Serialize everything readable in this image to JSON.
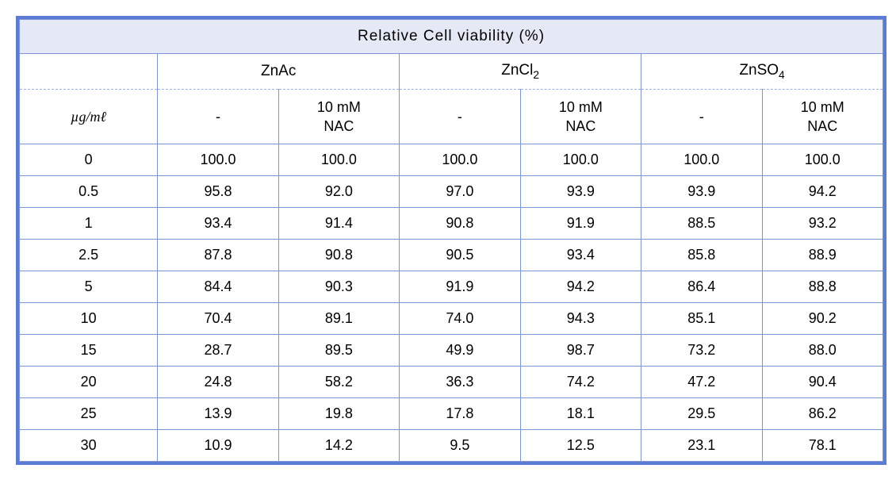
{
  "table": {
    "type": "table",
    "title": "Relative Cell viability (%)",
    "border_color": "#5b7bd5",
    "cell_border_color": "#7a95d8",
    "title_bg": "#e4e9f5",
    "row_bg": "#ffffff",
    "text_color": "#000000",
    "font_family": "Arial",
    "title_fontsize": 19,
    "header_fontsize": 19,
    "body_fontsize": 18,
    "unit_label_html": "㎍/㎖",
    "compounds": [
      {
        "name": "ZnAc",
        "name_html": "ZnAc"
      },
      {
        "name": "ZnCl2",
        "name_html": "ZnCl<sub>2</sub>"
      },
      {
        "name": "ZnSO4",
        "name_html": "ZnSO<sub>4</sub>"
      }
    ],
    "subcolumns": [
      {
        "label": "-"
      },
      {
        "label": "10 mM\nNAC"
      }
    ],
    "concentrations": [
      "0",
      "0.5",
      "1",
      "2.5",
      "5",
      "10",
      "15",
      "20",
      "25",
      "30"
    ],
    "rows": [
      [
        "100.0",
        "100.0",
        "100.0",
        "100.0",
        "100.0",
        "100.0"
      ],
      [
        "95.8",
        "92.0",
        "97.0",
        "93.9",
        "93.9",
        "94.2"
      ],
      [
        "93.4",
        "91.4",
        "90.8",
        "91.9",
        "88.5",
        "93.2"
      ],
      [
        "87.8",
        "90.8",
        "90.5",
        "93.4",
        "85.8",
        "88.9"
      ],
      [
        "84.4",
        "90.3",
        "91.9",
        "94.2",
        "86.4",
        "88.8"
      ],
      [
        "70.4",
        "89.1",
        "74.0",
        "94.3",
        "85.1",
        "90.2"
      ],
      [
        "28.7",
        "89.5",
        "49.9",
        "98.7",
        "73.2",
        "88.0"
      ],
      [
        "24.8",
        "58.2",
        "36.3",
        "74.2",
        "47.2",
        "90.4"
      ],
      [
        "13.9",
        "19.8",
        "17.8",
        "18.1",
        "29.5",
        "86.2"
      ],
      [
        "10.9",
        "14.2",
        "9.5",
        "12.5",
        "23.1",
        "78.1"
      ]
    ],
    "column_widths_pct": [
      16,
      14,
      14,
      14,
      14,
      14,
      14
    ]
  }
}
